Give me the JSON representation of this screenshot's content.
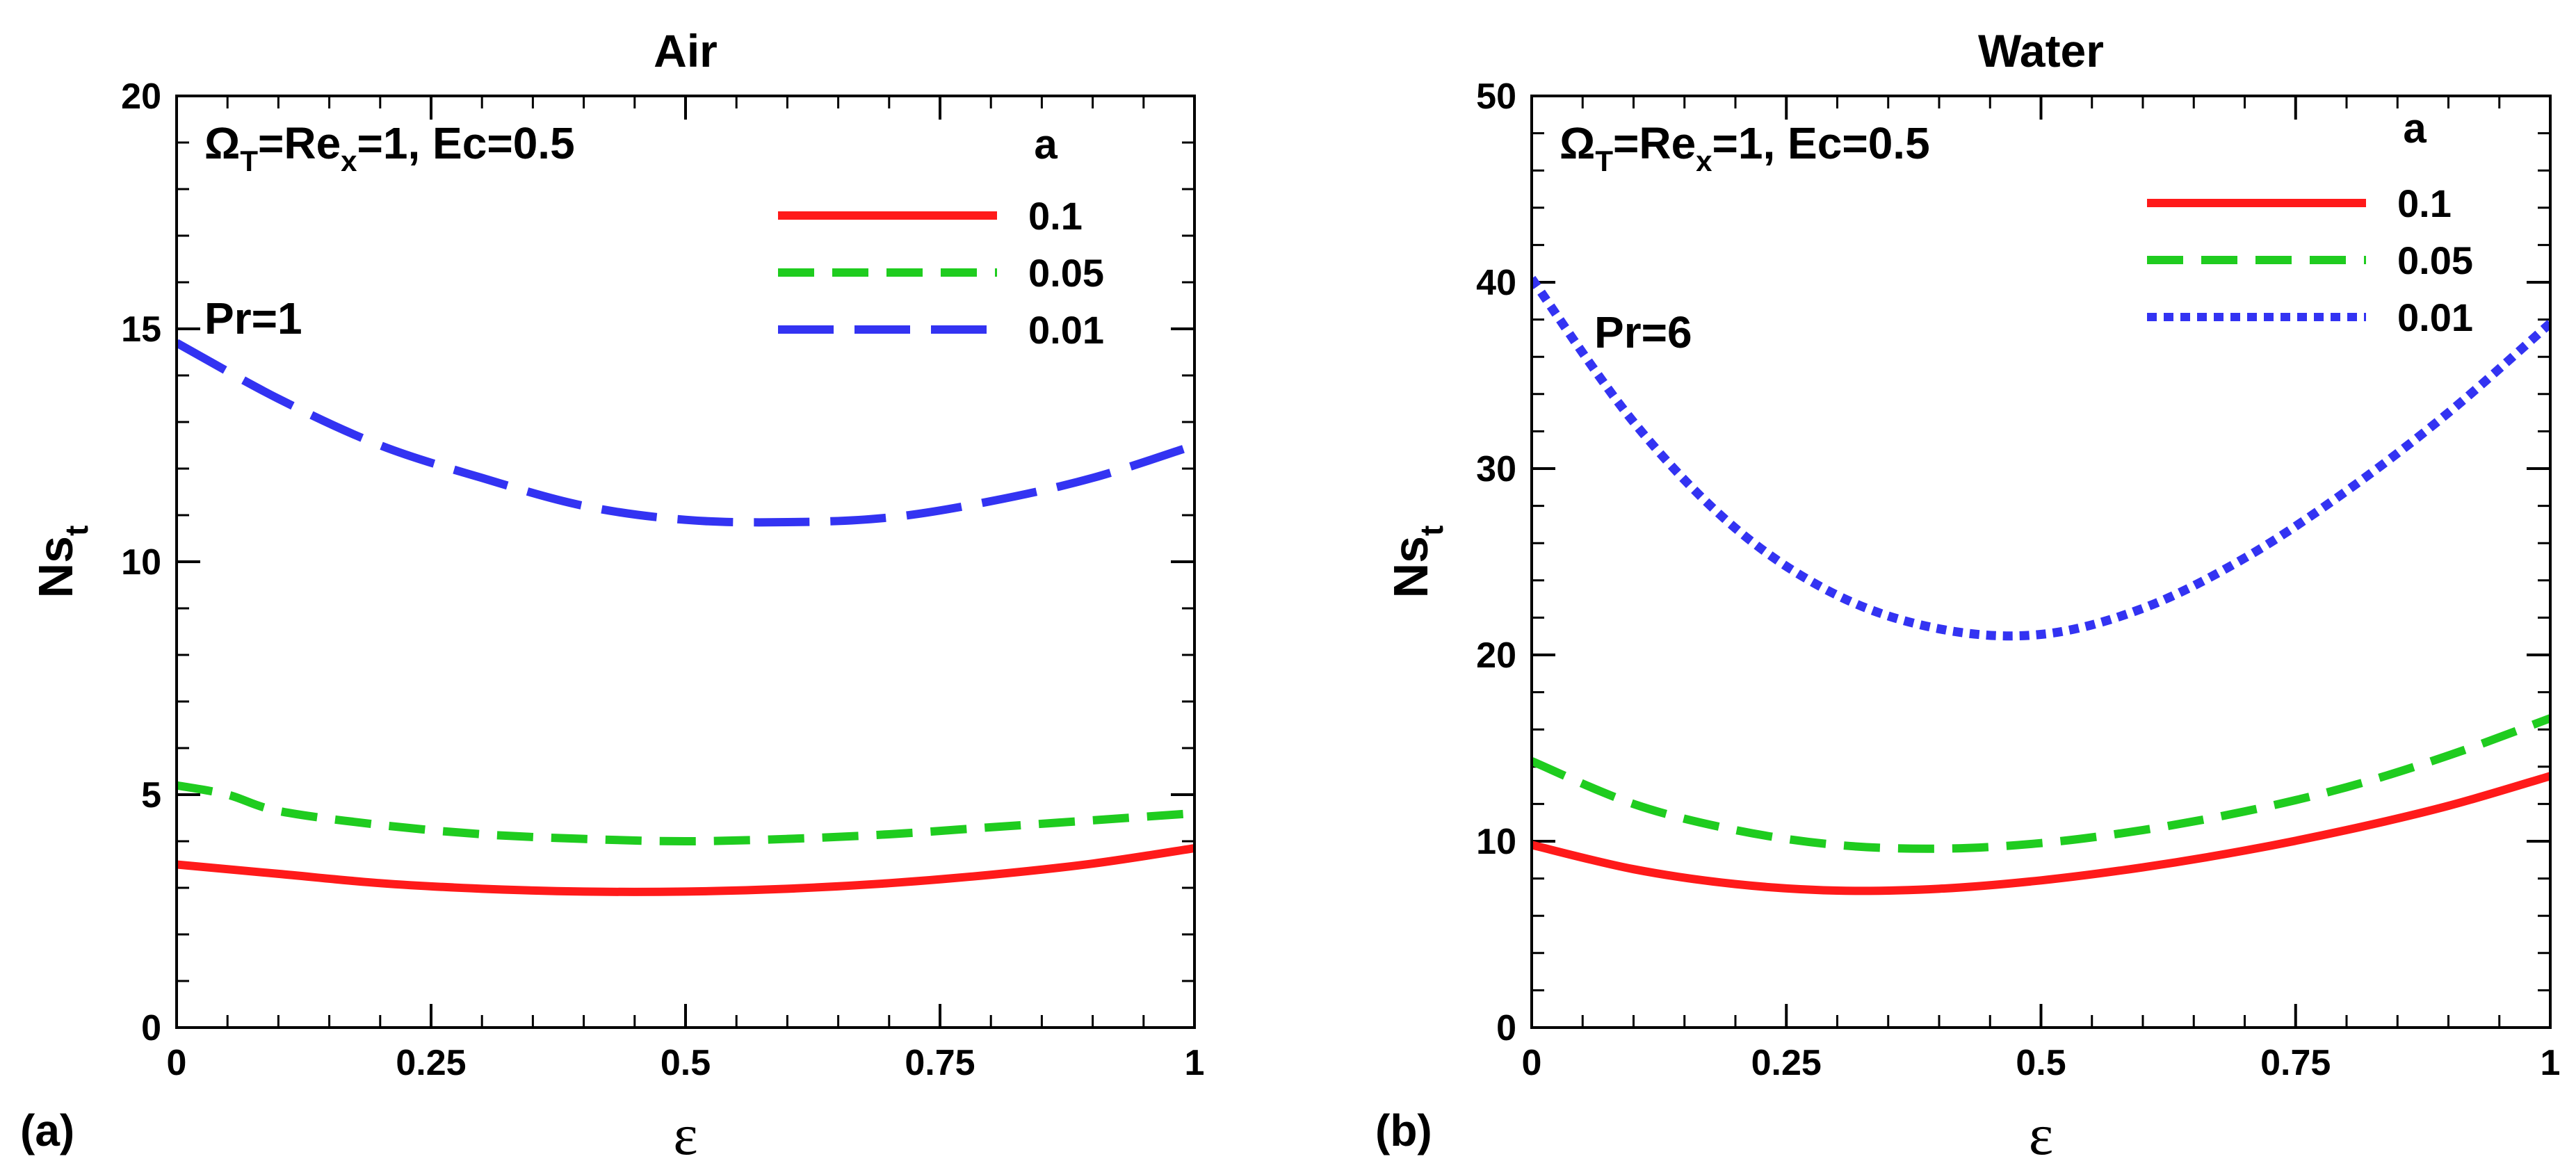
{
  "chart_data": [
    {
      "type": "line",
      "panel_label": "(a)",
      "title": "Air",
      "xlabel": "ε",
      "ylabel": "Ns",
      "ylabel_sub": "t",
      "xlim": [
        0,
        1
      ],
      "ylim": [
        0,
        20
      ],
      "xticks": [
        0,
        0.25,
        0.5,
        0.75,
        1
      ],
      "xtick_labels": [
        "0",
        "0.25",
        "0.5",
        "0.75",
        "1"
      ],
      "yticks": [
        0,
        5,
        10,
        15,
        20
      ],
      "ytick_labels": [
        "0",
        "5",
        "10",
        "15",
        "20"
      ],
      "annotation_params": {
        "omega": "Ω",
        "omega_sub": "T",
        "eq1": "=Re",
        "re_sub": "x",
        "eq2": "=1, Ec=0.5"
      },
      "annotation_pr": "Pr=1",
      "legend_title": "a",
      "series": [
        {
          "name": "0.1",
          "color": "#ff1a1a",
          "style": "solid",
          "x": [
            0,
            0.1,
            0.2,
            0.3,
            0.4,
            0.5,
            0.6,
            0.7,
            0.8,
            0.9,
            1.0
          ],
          "values": [
            3.5,
            3.3,
            3.1,
            2.98,
            2.92,
            2.92,
            2.98,
            3.1,
            3.28,
            3.52,
            3.85
          ]
        },
        {
          "name": "0.05",
          "color": "#1fcc1f",
          "style": "dash",
          "x": [
            0,
            0.05,
            0.1,
            0.2,
            0.3,
            0.4,
            0.5,
            0.6,
            0.7,
            0.8,
            0.9,
            1.0
          ],
          "values": [
            5.2,
            5.0,
            4.65,
            4.35,
            4.15,
            4.05,
            4.0,
            4.05,
            4.15,
            4.3,
            4.45,
            4.6
          ]
        },
        {
          "name": "0.01",
          "color": "#3333f2",
          "style": "longdash",
          "x": [
            0,
            0.1,
            0.2,
            0.3,
            0.4,
            0.5,
            0.6,
            0.7,
            0.8,
            0.9,
            1.0
          ],
          "values": [
            14.7,
            13.5,
            12.5,
            11.8,
            11.2,
            10.9,
            10.85,
            10.95,
            11.3,
            11.8,
            12.5
          ]
        }
      ]
    },
    {
      "type": "line",
      "panel_label": "(b)",
      "title": "Water",
      "xlabel": "ε",
      "ylabel": "Ns",
      "ylabel_sub": "t",
      "xlim": [
        0,
        1
      ],
      "ylim": [
        0,
        50
      ],
      "xticks": [
        0,
        0.25,
        0.5,
        0.75,
        1
      ],
      "xtick_labels": [
        "0",
        "0.25",
        "0.5",
        "0.75",
        "1"
      ],
      "yticks": [
        0,
        10,
        20,
        30,
        40,
        50
      ],
      "ytick_labels": [
        "0",
        "10",
        "20",
        "30",
        "40",
        "50"
      ],
      "annotation_params": {
        "omega": "Ω",
        "omega_sub": "T",
        "eq1": "=Re",
        "re_sub": "x",
        "eq2": "=1, Ec=0.5"
      },
      "annotation_pr": "Pr=6",
      "legend_title": "a",
      "series": [
        {
          "name": "0.1",
          "color": "#ff1a1a",
          "style": "solid",
          "x": [
            0,
            0.1,
            0.2,
            0.3,
            0.4,
            0.5,
            0.6,
            0.7,
            0.8,
            0.9,
            1.0
          ],
          "values": [
            9.8,
            8.5,
            7.7,
            7.35,
            7.45,
            7.9,
            8.6,
            9.5,
            10.6,
            11.9,
            13.5
          ]
        },
        {
          "name": "0.05",
          "color": "#1fcc1f",
          "style": "dash",
          "x": [
            0,
            0.1,
            0.2,
            0.3,
            0.4,
            0.5,
            0.6,
            0.7,
            0.8,
            0.9,
            1.0
          ],
          "values": [
            14.3,
            12.0,
            10.6,
            9.8,
            9.6,
            9.9,
            10.6,
            11.6,
            12.9,
            14.6,
            16.6
          ]
        },
        {
          "name": "0.01",
          "color": "#3333f2",
          "style": "dashdot",
          "x": [
            0,
            0.1,
            0.2,
            0.3,
            0.4,
            0.5,
            0.6,
            0.7,
            0.8,
            0.9,
            1.0
          ],
          "values": [
            40.2,
            32.5,
            26.8,
            23.2,
            21.4,
            21.1,
            22.5,
            25.2,
            28.8,
            33.0,
            37.8
          ]
        }
      ]
    }
  ]
}
